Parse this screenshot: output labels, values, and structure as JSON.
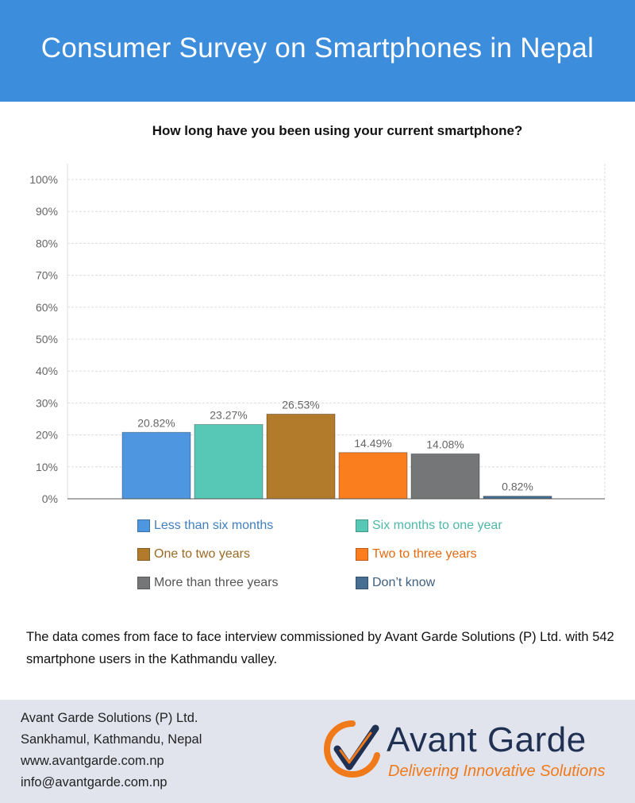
{
  "header": {
    "title": "Consumer Survey on Smartphones in Nepal"
  },
  "chart_data": {
    "type": "bar",
    "title": "How long have you been using your current smartphone?",
    "xlabel": "",
    "ylabel": "",
    "ylim": [
      0,
      100
    ],
    "y_ticks": [
      "0%",
      "10%",
      "20%",
      "30%",
      "40%",
      "50%",
      "60%",
      "70%",
      "80%",
      "90%",
      "100%"
    ],
    "grid": true,
    "legend_placement": "bottom",
    "categories": [
      "Less than six months",
      "Six months to one year",
      "One to two years",
      "Two to three years",
      "More than three years",
      "Don’t know"
    ],
    "values": [
      20.82,
      23.27,
      26.53,
      14.49,
      14.08,
      0.82
    ],
    "value_labels": [
      "20.82%",
      "23.27%",
      "26.53%",
      "14.49%",
      "14.08%",
      "0.82%"
    ],
    "colors": [
      "#4f96e0",
      "#58c8b6",
      "#b27a2b",
      "#fa7d1e",
      "#747678",
      "#466e90"
    ],
    "legend_text_colors": [
      "#3f7fbf",
      "#4db8a8",
      "#9a6a24",
      "#e46a10",
      "#555555",
      "#3d5f80"
    ]
  },
  "note": {
    "text": "The data comes from face to face interview commissioned by Avant Garde Solutions (P) Ltd. with 542 smartphone users in the Kathmandu valley."
  },
  "footer": {
    "lines": [
      "Avant Garde Solutions (P) Ltd.",
      "Sankhamul, Kathmandu, Nepal",
      "www.avantgarde.com.np",
      "info@avantgarde.com.np"
    ],
    "logo_name": "Avant Garde",
    "logo_tagline": "Delivering Innovative Solutions",
    "logo_icon": "checkmark-circle-logo"
  }
}
